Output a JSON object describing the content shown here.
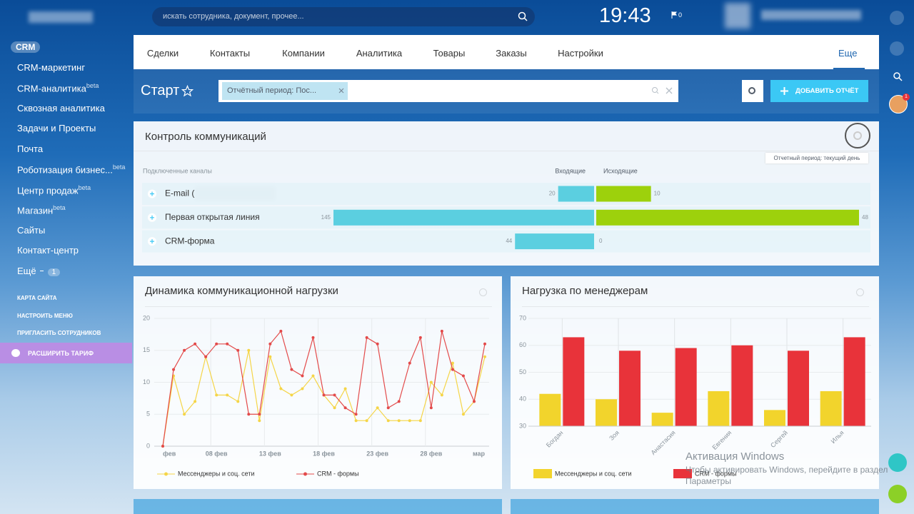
{
  "header": {
    "search_placeholder": "искать сотрудника, документ, прочее...",
    "clock": "19:43",
    "flag_count": 0,
    "avatar_badge": 1
  },
  "sidebar": {
    "items": [
      {
        "label": "CRM"
      },
      {
        "label": "CRM-маркетинг"
      },
      {
        "label": "CRM-аналитика",
        "sup": "beta"
      },
      {
        "label": "Сквозная аналитика"
      },
      {
        "label": "Задачи и Проекты"
      },
      {
        "label": "Почта"
      },
      {
        "label": "Роботизация бизнес...",
        "sup": "beta"
      },
      {
        "label": "Центр продаж",
        "sup": "beta"
      },
      {
        "label": "Магазин",
        "sup": "beta"
      },
      {
        "label": "Сайты"
      },
      {
        "label": "Контакт-центр"
      },
      {
        "label": "Ещё",
        "counter": 1
      }
    ],
    "links": [
      "КАРТА САЙТА",
      "НАСТРОИТЬ МЕНЮ",
      "ПРИГЛАСИТЬ СОТРУДНИКОВ"
    ],
    "upgrade": "РАСШИРИТЬ ТАРИФ"
  },
  "nav": {
    "tabs": [
      "Сделки",
      "Контакты",
      "Компании",
      "Аналитика",
      "Товары",
      "Заказы",
      "Настройки"
    ],
    "more": "Еще"
  },
  "toolbar": {
    "title": "Старт",
    "filter": "Отчётный период: Пос...",
    "add_button": "ДОБАВИТЬ ОТЧЁТ"
  },
  "chart_data": [
    {
      "type": "butterfly",
      "title": "Контроль коммуникаций",
      "tooltip": "Отчетный период: текущий день",
      "category_label": "Подключенные каналы",
      "categories": [
        "E-mail (",
        "Первая открытая линия",
        "CRM-форма"
      ],
      "series": [
        {
          "name": "Входящие",
          "color": "#5bcfe0",
          "values": [
            20,
            145,
            44
          ]
        },
        {
          "name": "Исходящие",
          "color": "#9dd10c",
          "values": [
            10,
            48,
            0
          ]
        }
      ]
    },
    {
      "type": "line",
      "title": "Динамика коммуникационной нагрузки",
      "categories": [
        "фев",
        null,
        null,
        null,
        null,
        "08 фев",
        null,
        null,
        null,
        null,
        "13 фев",
        null,
        null,
        null,
        null,
        "18 фев",
        null,
        null,
        null,
        null,
        "23 фев",
        null,
        null,
        null,
        null,
        "28 фев",
        null,
        null,
        null,
        null,
        "мар"
      ],
      "series": [
        {
          "name": "Мессенджеры и соц. сети",
          "color": "#f5d547",
          "values": [
            0,
            11,
            5,
            7,
            14,
            8,
            8,
            7,
            15,
            4,
            14,
            9,
            8,
            9,
            11,
            8,
            6,
            9,
            4,
            4,
            6,
            4,
            4,
            4,
            4,
            10,
            8,
            13,
            5,
            7,
            14
          ]
        },
        {
          "name": "CRM - формы",
          "color": "#e34a4a",
          "values": [
            0,
            12,
            15,
            16,
            14,
            16,
            16,
            15,
            5,
            5,
            16,
            18,
            12,
            11,
            17,
            8,
            8,
            6,
            5,
            17,
            16,
            6,
            7,
            13,
            17,
            6,
            18,
            12,
            11,
            7,
            16
          ]
        }
      ],
      "ylim": [
        0,
        20
      ],
      "yticks": [
        0,
        5,
        10,
        15,
        20
      ],
      "grid": true,
      "legend": "bottom"
    },
    {
      "type": "bar",
      "title": "Нагрузка по менеджерам",
      "categories": [
        "Богдан",
        "Зоя",
        "Анастасия",
        "Евгения",
        "Сергей",
        "Илья"
      ],
      "series": [
        {
          "name": "Мессенджеры и соц. сети",
          "color": "#f2d42c",
          "values": [
            42,
            40,
            35,
            43,
            36,
            43
          ]
        },
        {
          "name": "CRM - формы",
          "color": "#e8333a",
          "values": [
            63,
            58,
            59,
            60,
            58,
            63
          ]
        }
      ],
      "ylim": [
        30,
        70
      ],
      "yticks": [
        30,
        40,
        50,
        60,
        70
      ],
      "grid": true,
      "legend": "bottom"
    }
  ],
  "watermark": {
    "title": "Активация Windows",
    "text": "Чтобы активировать Windows, перейдите в раздел",
    "link": "Параметры"
  }
}
